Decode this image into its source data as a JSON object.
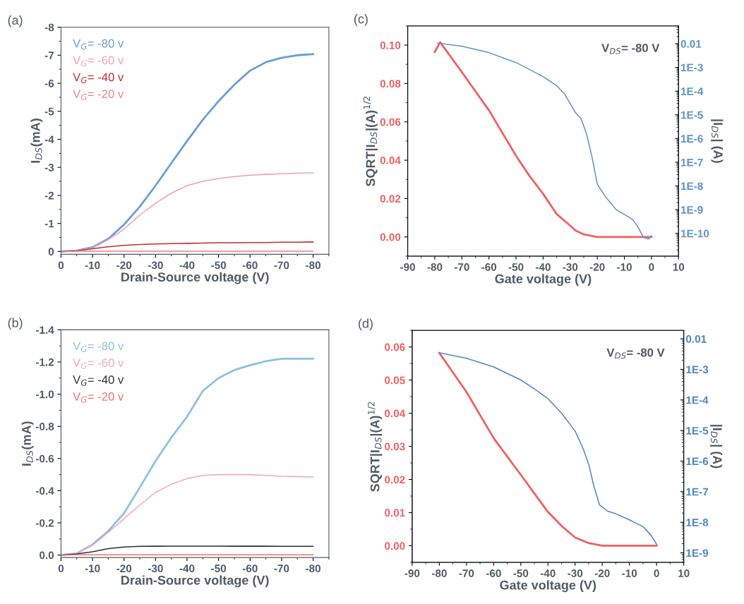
{
  "chart_data": [
    {
      "type": "line",
      "annotations": [
        "(a)"
      ],
      "xlabel": "Drain-Source voltage (V)",
      "ylabel": "I$_{DS}$(mA)",
      "legend": "top left",
      "grid": false,
      "x": [
        0,
        -5,
        -10,
        -15,
        -20,
        -25,
        -30,
        -35,
        -40,
        -45,
        -50,
        -55,
        -60,
        -65,
        -70,
        -75,
        -80
      ],
      "xlim": [
        0,
        -85
      ],
      "xticks": [
        0,
        -10,
        -20,
        -30,
        -40,
        -50,
        -60,
        -70,
        -80
      ],
      "ylim": [
        0.1,
        -8
      ],
      "yticks": [
        0,
        -1,
        -2,
        -3,
        -4,
        -5,
        -6,
        -7,
        -8
      ],
      "series": [
        {
          "name": "V$_{G}$= -80 v",
          "color": "#6a9fd4",
          "values": [
            0,
            -0.03,
            -0.15,
            -0.45,
            -0.96,
            -1.6,
            -2.35,
            -3.15,
            -3.94,
            -4.7,
            -5.36,
            -5.95,
            -6.45,
            -6.75,
            -6.91,
            -7.0,
            -7.04
          ]
        },
        {
          "name": "V$_{G}$= -60 v",
          "color": "#f0a0b8",
          "values": [
            0,
            -0.03,
            -0.13,
            -0.42,
            -0.8,
            -1.3,
            -1.72,
            -2.08,
            -2.35,
            -2.5,
            -2.6,
            -2.67,
            -2.72,
            -2.75,
            -2.77,
            -2.79,
            -2.81
          ]
        },
        {
          "name": "V$_{G}$= -40 v",
          "color": "#c03030",
          "values": [
            0,
            -0.02,
            -0.1,
            -0.17,
            -0.22,
            -0.25,
            -0.27,
            -0.28,
            -0.29,
            -0.3,
            -0.31,
            -0.31,
            -0.32,
            -0.32,
            -0.33,
            -0.33,
            -0.34
          ]
        },
        {
          "name": "V$_{G}$= -20 v",
          "color": "#f08080",
          "values": [
            0,
            -0.01,
            -0.01,
            -0.01,
            -0.01,
            -0.01,
            -0.01,
            -0.01,
            -0.01,
            -0.01,
            -0.01,
            -0.01,
            -0.01,
            -0.01,
            -0.01,
            -0.01,
            -0.01
          ]
        }
      ]
    },
    {
      "type": "line",
      "annotations": [
        "(c)",
        "V$_{DS}$= -80 V"
      ],
      "xlabel": "Gate voltage (V)",
      "ylabel": "SQRT|I$_{DS}$|(A)$^{1/2}$",
      "y2label": "|I$_{DS}$| (A)",
      "grid": false,
      "log": "y2",
      "xlim": [
        -90,
        10
      ],
      "xticks": [
        -90,
        -80,
        -70,
        -60,
        -50,
        -40,
        -30,
        -20,
        -10,
        0,
        10
      ],
      "ylim": [
        -0.01,
        0.11
      ],
      "yticks": [
        {
          "value": 0,
          "label": "0.00"
        },
        {
          "value": 0.02,
          "label": "0.02"
        },
        {
          "value": 0.04,
          "label": "0.04"
        },
        {
          "value": 0.06,
          "label": "0.06"
        },
        {
          "value": 0.08,
          "label": "0.08"
        },
        {
          "value": 0.1,
          "label": "0.10"
        }
      ],
      "y2lim": [
        1.1e-11,
        0.056
      ],
      "y2ticks": [
        {
          "value": 1e-10,
          "label": "1E-10"
        },
        {
          "value": 1e-09,
          "label": "1E-9"
        },
        {
          "value": 1e-08,
          "label": "1E-8"
        },
        {
          "value": 1e-07,
          "label": "1E-7"
        },
        {
          "value": 1e-06,
          "label": "1E-6"
        },
        {
          "value": 1e-05,
          "label": "1E-5"
        },
        {
          "value": 0.0001,
          "label": "1E-4"
        },
        {
          "value": 0.001,
          "label": "1E-3"
        },
        0.01
      ],
      "series": [
        {
          "color": "#f06060",
          "x": [
            -80,
            -78,
            -70,
            -60,
            -50,
            -45,
            -40,
            -35,
            -30,
            -28,
            -25,
            -20,
            -10,
            0
          ],
          "values": [
            0.0964,
            0.1015,
            0.0859,
            0.066,
            0.0423,
            0.0317,
            0.0225,
            0.0119,
            0.0059,
            0.0033,
            0.0013,
            0,
            0,
            0
          ]
        },
        {
          "color": "#5b93c8",
          "axis": "y2",
          "x": [
            -79,
            -70,
            -60,
            -50,
            -40,
            -35,
            -32,
            -28,
            -26,
            -24,
            -22,
            -20,
            -17,
            -13,
            -10,
            -7,
            -5,
            -3,
            -1,
            0
          ],
          "values": [
            0.0107,
            0.0078,
            0.0042,
            0.0016,
            0.00041,
            0.00017,
            7.4e-05,
            1.2e-05,
            7e-06,
            1.6e-06,
            1.8e-07,
            1.2e-08,
            3.5e-09,
            1e-09,
            6.3e-10,
            3.9e-10,
            1.9e-10,
            6.9e-11,
            5.8e-11,
            7.9e-11
          ]
        }
      ]
    },
    {
      "type": "line",
      "annotations": [
        "(b)"
      ],
      "xlabel": "Drain-Source voltage (V)",
      "ylabel": "I$_{DS}$(mA)",
      "legend": "top left",
      "grid": false,
      "x": [
        0,
        -5,
        -10,
        -15,
        -20,
        -25,
        -30,
        -35,
        -40,
        -45,
        -50,
        -55,
        -60,
        -65,
        -70,
        -75,
        -80
      ],
      "xlim": [
        0,
        -85
      ],
      "xticks": [
        0,
        -10,
        -20,
        -30,
        -40,
        -50,
        -60,
        -70,
        -80
      ],
      "ylim": [
        0.015,
        -1.4
      ],
      "yticks": [
        {
          "value": 0,
          "label": "0.0"
        },
        {
          "value": -0.2,
          "label": "-0.2"
        },
        {
          "value": -0.4,
          "label": "-0.4"
        },
        {
          "value": -0.6,
          "label": "-0.6"
        },
        {
          "value": -0.8,
          "label": "-0.8"
        },
        {
          "value": -1.0,
          "label": "-1.0"
        },
        {
          "value": -1.2,
          "label": "-1.2"
        },
        {
          "value": -1.4,
          "label": "-1.4"
        }
      ],
      "series": [
        {
          "name": "V$_{G}$= -80 v",
          "color": "#8cc0e0",
          "values": [
            0,
            -0.01,
            -0.066,
            -0.15,
            -0.26,
            -0.42,
            -0.585,
            -0.73,
            -0.86,
            -1.02,
            -1.1,
            -1.15,
            -1.18,
            -1.205,
            -1.22,
            -1.22,
            -1.22
          ]
        },
        {
          "name": "V$_{G}$= -60 v",
          "color": "#f4a8bc",
          "values": [
            0,
            -0.01,
            -0.06,
            -0.14,
            -0.227,
            -0.31,
            -0.39,
            -0.44,
            -0.475,
            -0.495,
            -0.5,
            -0.5,
            -0.5,
            -0.495,
            -0.49,
            -0.488,
            -0.485
          ]
        },
        {
          "name": "V$_{G}$= -40 v",
          "color": "#303030",
          "values": [
            0,
            -0.007,
            -0.02,
            -0.04,
            -0.05,
            -0.054,
            -0.055,
            -0.056,
            -0.056,
            -0.056,
            -0.056,
            -0.055,
            -0.055,
            -0.055,
            -0.054,
            -0.054,
            -0.054
          ]
        },
        {
          "name": "V$_{G}$= -20 v",
          "color": "#f07070",
          "values": [
            0,
            -0.002,
            -0.002,
            -0.002,
            -0.002,
            -0.002,
            -0.002,
            -0.002,
            -0.002,
            -0.002,
            -0.002,
            -0.002,
            -0.002,
            -0.002,
            -0.002,
            -0.002,
            -0.002
          ]
        }
      ]
    },
    {
      "type": "line",
      "annotations": [
        "(d)",
        "V$_{DS}$= -80 V"
      ],
      "xlabel": "Gate voltage (V)",
      "ylabel": "SQRT|I$_{DS}$|(A)$^{1/2}$",
      "y2label": "|I$_{DS}$| (A)",
      "grid": false,
      "log": "y2",
      "xlim": [
        -90,
        10
      ],
      "xticks": [
        -90,
        -80,
        -70,
        -60,
        -50,
        -40,
        -30,
        -20,
        -10,
        0,
        10
      ],
      "ylim": [
        -0.005,
        0.065
      ],
      "yticks": [
        {
          "value": 0,
          "label": "0.00"
        },
        {
          "value": 0.01,
          "label": "0.01"
        },
        {
          "value": 0.02,
          "label": "0.02"
        },
        {
          "value": 0.03,
          "label": "0.03"
        },
        {
          "value": 0.04,
          "label": "0.04"
        },
        {
          "value": 0.05,
          "label": "0.05"
        },
        {
          "value": 0.06,
          "label": "0.06"
        }
      ],
      "y2lim": [
        4.9e-10,
        0.0188
      ],
      "y2ticks": [
        {
          "value": 1e-09,
          "label": "1E-9"
        },
        {
          "value": 1e-08,
          "label": "1E-8"
        },
        {
          "value": 1e-07,
          "label": "1E-7"
        },
        {
          "value": 1e-06,
          "label": "1E-6"
        },
        {
          "value": 1e-05,
          "label": "1E-5"
        },
        {
          "value": 0.0001,
          "label": "1E-4"
        },
        {
          "value": 0.001,
          "label": "1E-3"
        },
        0.01
      ],
      "series": [
        {
          "color": "#f06060",
          "x": [
            -80,
            -70,
            -60,
            -50,
            -40,
            -35,
            -30,
            -25,
            -20,
            -10,
            0
          ],
          "values": [
            0.0582,
            0.0464,
            0.0325,
            0.0214,
            0.0102,
            0.006,
            0.0025,
            0.0008,
            0,
            0,
            0
          ]
        },
        {
          "color": "#4f86c0",
          "axis": "y2",
          "x": [
            -80,
            -70,
            -60,
            -50,
            -45,
            -40,
            -35,
            -30,
            -27,
            -25,
            -23,
            -21,
            -18,
            -15,
            -10,
            -5,
            -2,
            0
          ],
          "values": [
            0.0035,
            0.0023,
            0.0012,
            0.00045,
            0.00023,
            0.00011,
            3.7e-05,
            9.6e-06,
            2.5e-06,
            7.9e-07,
            1.4e-07,
            3.7e-08,
            2.3e-08,
            1.9e-08,
            1.2e-08,
            7.2e-09,
            3.7e-09,
            1.9e-09
          ]
        }
      ]
    }
  ]
}
